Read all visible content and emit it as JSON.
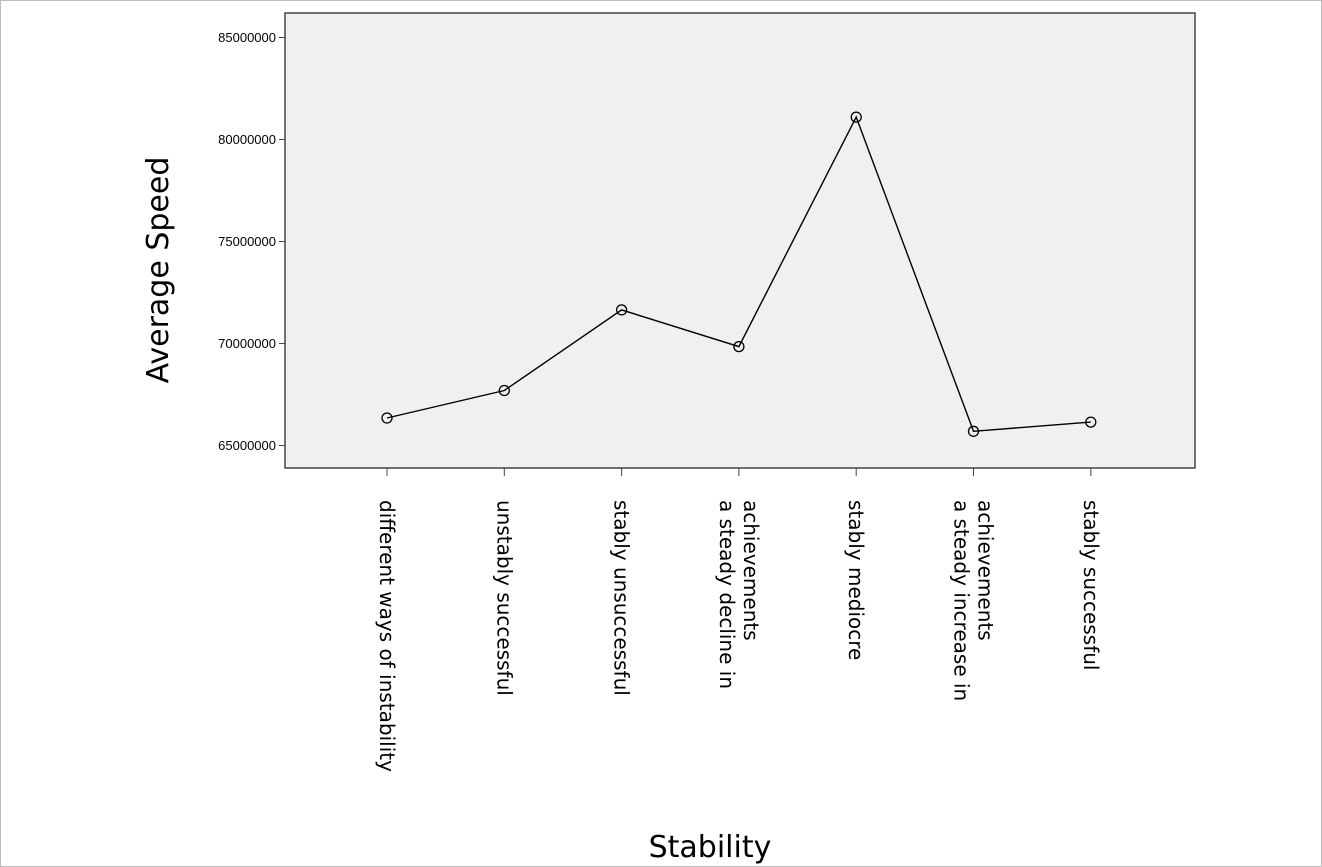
{
  "chart_data": {
    "type": "line",
    "categories": [
      [
        "different ways of instability"
      ],
      [
        "unstably successful"
      ],
      [
        "stably unsuccessful"
      ],
      [
        "a steady decline in",
        "achievements"
      ],
      [
        "stably mediocre"
      ],
      [
        "a steady increase in",
        "achievements"
      ],
      [
        "stably successful"
      ]
    ],
    "values": [
      66350000,
      67700000,
      71650000,
      69850000,
      81100000,
      65700000,
      66150000
    ],
    "xlabel": "Stability",
    "ylabel": "Average Speed",
    "ylim": [
      63900000,
      86200000
    ],
    "yticks": [
      65000000,
      70000000,
      75000000,
      80000000,
      85000000
    ],
    "ytick_labels": [
      "65000000",
      "70000000",
      "75000000",
      "80000000",
      "85000000"
    ],
    "grid": false,
    "legend": "none",
    "colors": {
      "plot_background": "#f0f0f0",
      "line": "#000000",
      "axis": "#444444"
    }
  }
}
